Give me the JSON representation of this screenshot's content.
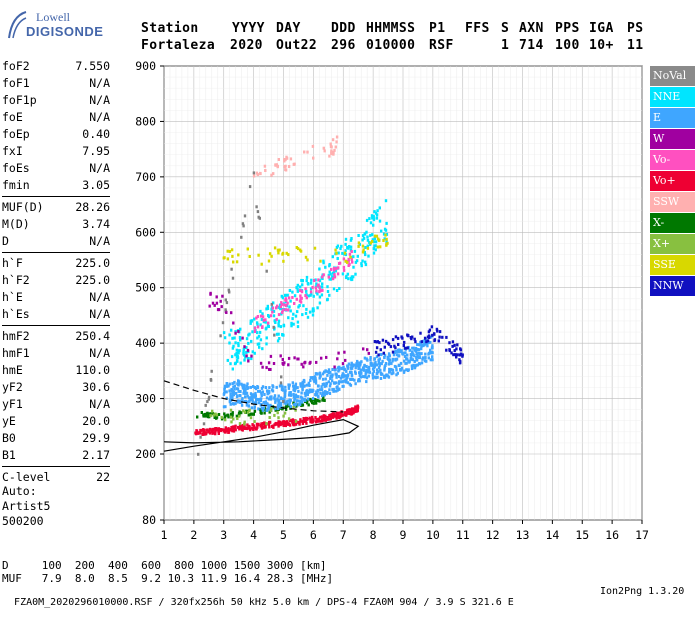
{
  "logo": {
    "line1": "Lowell",
    "line2": "DIGISONDE"
  },
  "header": {
    "labels": [
      "Station",
      "YYYY",
      "DAY",
      "DDD",
      "HHMMSS",
      "P1",
      "FFS",
      "S",
      "AXN",
      "PPS",
      "IGA",
      "PS"
    ],
    "values": [
      "Fortaleza",
      "2020",
      "Out22",
      "296",
      "010000",
      "RSF",
      "",
      "1",
      "714",
      "100",
      "10+",
      "11"
    ]
  },
  "params": {
    "group1": [
      {
        "name": "foF2",
        "value": "7.550"
      },
      {
        "name": "foF1",
        "value": "N/A"
      },
      {
        "name": "foF1p",
        "value": "N/A"
      },
      {
        "name": "foE",
        "value": "N/A"
      },
      {
        "name": "foEp",
        "value": "0.40"
      },
      {
        "name": "fxI",
        "value": "7.95"
      },
      {
        "name": "foEs",
        "value": "N/A"
      },
      {
        "name": "fmin",
        "value": "3.05"
      }
    ],
    "group2": [
      {
        "name": "MUF(D)",
        "value": "28.26"
      },
      {
        "name": "M(D)",
        "value": "3.74"
      },
      {
        "name": "D",
        "value": "N/A"
      }
    ],
    "group3": [
      {
        "name": "h`F",
        "value": "225.0"
      },
      {
        "name": "h`F2",
        "value": "225.0"
      },
      {
        "name": "h`E",
        "value": "N/A"
      },
      {
        "name": "h`Es",
        "value": "N/A"
      }
    ],
    "group4": [
      {
        "name": "hmF2",
        "value": "250.4"
      },
      {
        "name": "hmF1",
        "value": "N/A"
      },
      {
        "name": "hmE",
        "value": "110.0"
      },
      {
        "name": "yF2",
        "value": "30.6"
      },
      {
        "name": "yF1",
        "value": "N/A"
      },
      {
        "name": "yE",
        "value": "20.0"
      },
      {
        "name": "B0",
        "value": "29.9"
      },
      {
        "name": "B1",
        "value": "2.17"
      }
    ],
    "group5": [
      {
        "name": "C-level",
        "value": "22"
      }
    ]
  },
  "auto": {
    "line1": "Auto:",
    "line2": "Artist5",
    "line3": "500200"
  },
  "legend": [
    {
      "label": "NoVal",
      "color": "#808080"
    },
    {
      "label": "NNE",
      "color": "#00e5ff"
    },
    {
      "label": "E",
      "color": "#3fa6ff"
    },
    {
      "label": "W",
      "color": "#a000a0"
    },
    {
      "label": "Vo-",
      "color": "#ff50c0"
    },
    {
      "label": "Vo+",
      "color": "#ee0033"
    },
    {
      "label": "SSW",
      "color": "#ffb0b0"
    },
    {
      "label": "X-",
      "color": "#007800"
    },
    {
      "label": "X+",
      "color": "#88c040"
    },
    {
      "label": "SSE",
      "color": "#d8d800"
    },
    {
      "label": "NNW",
      "color": "#1010c0"
    }
  ],
  "footer": {
    "d_label": "D",
    "d_values": [
      "100",
      "200",
      "400",
      "600",
      "800",
      "1000",
      "1500",
      "3000"
    ],
    "d_unit": "[km]",
    "muf_label": "MUF",
    "muf_values": [
      "7.9",
      "8.0",
      "8.5",
      "9.2",
      "10.3",
      "11.9",
      "16.4",
      "28.3"
    ],
    "muf_unit": "[MHz]",
    "info": "FZA0M_2020296010000.RSF / 320fx256h 50 kHz 5.0 km / DPS-4 FZA0M 904 / 3.9 S 321.6 E",
    "version": "Ion2Png 1.3.20"
  },
  "chart_data": {
    "type": "scatter",
    "x_ticks": [
      1,
      2,
      3,
      4,
      5,
      6,
      7,
      8,
      9,
      10,
      11,
      12,
      13,
      14,
      15,
      16,
      17
    ],
    "y_ticks": [
      80,
      200,
      300,
      400,
      500,
      600,
      700,
      800,
      900
    ],
    "xlim": [
      1,
      17
    ],
    "ylim_scale_note": "virtual height, km",
    "grid": true,
    "legend_position": "right",
    "trace_profile": [
      [
        1,
        205
      ],
      [
        2,
        214
      ],
      [
        3,
        222
      ],
      [
        4,
        230
      ],
      [
        5,
        240
      ],
      [
        6,
        252
      ],
      [
        7,
        262
      ],
      [
        7.5,
        250
      ],
      [
        7.2,
        238
      ],
      [
        6.5,
        232
      ],
      [
        5.5,
        228
      ],
      [
        4.5,
        225
      ],
      [
        3.5,
        222
      ],
      [
        2,
        220
      ],
      [
        1,
        222
      ]
    ],
    "trace_dashed": [
      [
        1,
        332
      ],
      [
        2,
        315
      ],
      [
        3,
        300
      ],
      [
        4,
        290
      ],
      [
        5,
        283
      ],
      [
        6,
        278
      ],
      [
        7,
        276
      ]
    ],
    "series": [
      {
        "name": "Vo+",
        "points": [
          [
            2,
            238
          ],
          [
            2.5,
            240
          ],
          [
            3,
            243
          ],
          [
            3.5,
            246
          ],
          [
            4,
            249
          ],
          [
            4.5,
            252
          ],
          [
            5,
            255
          ],
          [
            5.5,
            258
          ],
          [
            6,
            262
          ],
          [
            6.5,
            266
          ],
          [
            7,
            272
          ],
          [
            7.3,
            277
          ],
          [
            7.5,
            283
          ]
        ]
      },
      {
        "name": "X-",
        "points": [
          [
            2,
            272
          ],
          [
            2.5,
            270
          ],
          [
            3,
            268
          ],
          [
            3.5,
            272
          ],
          [
            4,
            276
          ],
          [
            4.5,
            280
          ],
          [
            5,
            284
          ],
          [
            5.5,
            290
          ],
          [
            6,
            295
          ],
          [
            6.5,
            300
          ]
        ]
      },
      {
        "name": "E",
        "points": [
          [
            3,
            305
          ],
          [
            3.5,
            312
          ],
          [
            4,
            302
          ],
          [
            4.5,
            300
          ],
          [
            5,
            305
          ],
          [
            5.5,
            310
          ],
          [
            6,
            322
          ],
          [
            6.5,
            330
          ],
          [
            7,
            340
          ],
          [
            7.5,
            348
          ],
          [
            8,
            355
          ],
          [
            8.5,
            360
          ],
          [
            9,
            368
          ],
          [
            9.5,
            378
          ],
          [
            10,
            392
          ]
        ]
      },
      {
        "name": "NNE",
        "points": [
          [
            3,
            390
          ],
          [
            3.5,
            395
          ],
          [
            4,
            410
          ],
          [
            4.5,
            430
          ],
          [
            5,
            450
          ],
          [
            5.5,
            470
          ],
          [
            6,
            490
          ],
          [
            6.5,
            520
          ],
          [
            7,
            545
          ],
          [
            7.5,
            560
          ],
          [
            8,
            600
          ],
          [
            8.5,
            620
          ]
        ]
      },
      {
        "name": "Vo-",
        "points": [
          [
            4,
            430
          ],
          [
            4.5,
            445
          ],
          [
            5,
            465
          ],
          [
            5.5,
            480
          ],
          [
            6,
            500
          ],
          [
            6.5,
            515
          ],
          [
            7,
            540
          ],
          [
            7.3,
            555
          ]
        ]
      },
      {
        "name": "NNW",
        "points": [
          [
            8,
            390
          ],
          [
            8.5,
            395
          ],
          [
            9,
            400
          ],
          [
            9.5,
            410
          ],
          [
            10,
            420
          ],
          [
            10.5,
            395
          ],
          [
            10.8,
            385
          ],
          [
            11,
            370
          ]
        ]
      },
      {
        "name": "SSE",
        "points": [
          [
            3,
            560
          ],
          [
            4,
            555
          ],
          [
            5,
            560
          ],
          [
            7,
            555
          ],
          [
            8,
            580
          ],
          [
            8.5,
            590
          ]
        ]
      },
      {
        "name": "W",
        "points": [
          [
            2.5,
            480
          ],
          [
            3,
            470
          ],
          [
            4,
            360
          ],
          [
            5,
            370
          ],
          [
            6,
            360
          ],
          [
            8,
            380
          ]
        ]
      },
      {
        "name": "X+",
        "points": [
          [
            2.5,
            268
          ],
          [
            3.5,
            266
          ],
          [
            4.5,
            268
          ],
          [
            5.5,
            272
          ]
        ]
      },
      {
        "name": "SSW",
        "points": [
          [
            6.5,
            745
          ],
          [
            6.8,
            760
          ],
          [
            4,
            705
          ],
          [
            5,
            720
          ],
          [
            5.5,
            735
          ]
        ]
      },
      {
        "name": "NoVal",
        "points": [
          [
            2,
            165
          ],
          [
            3,
            455
          ],
          [
            4,
            700
          ],
          [
            5,
            300
          ]
        ]
      }
    ]
  }
}
